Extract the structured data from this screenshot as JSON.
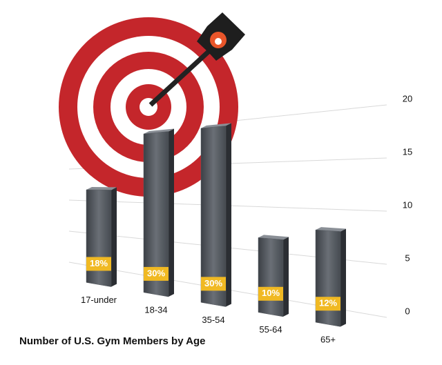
{
  "chart_data": {
    "type": "bar3d",
    "title": "Number of U.S. Gym Members by Age",
    "categories": [
      "17-under",
      "18-34",
      "35-54",
      "55-64",
      "65+"
    ],
    "values": [
      11.7,
      19.5,
      19.5,
      6.5,
      7.8
    ],
    "percent_labels": [
      "18%",
      "30%",
      "30%",
      "10%",
      "12%"
    ],
    "color": "#555a60",
    "label_color": "#f0b923",
    "ylim": [
      0,
      20
    ],
    "yticks": [
      0,
      5,
      10,
      15,
      20
    ],
    "grid": true
  }
}
